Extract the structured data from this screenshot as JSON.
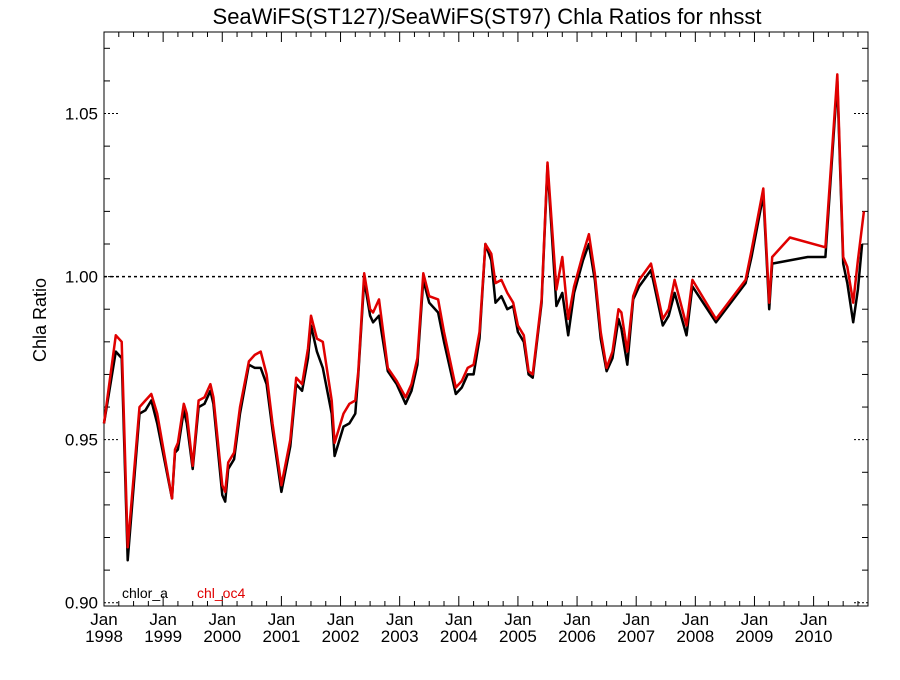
{
  "chart_data": {
    "type": "line",
    "title": "SeaWiFS(ST127)/SeaWiFS(ST97)  Chla Ratios for nhsst",
    "ylabel": "Chla Ratio",
    "xlabel": "",
    "ylim": [
      0.899,
      1.075
    ],
    "xlim": [
      1998.0,
      2010.92
    ],
    "yticks": [
      {
        "value": 0.9,
        "label": "0.90"
      },
      {
        "value": 0.95,
        "label": "0.95"
      },
      {
        "value": 1.0,
        "label": "1.00"
      },
      {
        "value": 1.05,
        "label": "1.05"
      }
    ],
    "xticks": [
      {
        "value": 1998,
        "month": "Jan",
        "year": "1998"
      },
      {
        "value": 1999,
        "month": "Jan",
        "year": "1999"
      },
      {
        "value": 2000,
        "month": "Jan",
        "year": "2000"
      },
      {
        "value": 2001,
        "month": "Jan",
        "year": "2001"
      },
      {
        "value": 2002,
        "month": "Jan",
        "year": "2002"
      },
      {
        "value": 2003,
        "month": "Jan",
        "year": "2003"
      },
      {
        "value": 2004,
        "month": "Jan",
        "year": "2004"
      },
      {
        "value": 2005,
        "month": "Jan",
        "year": "2005"
      },
      {
        "value": 2006,
        "month": "Jan",
        "year": "2006"
      },
      {
        "value": 2007,
        "month": "Jan",
        "year": "2007"
      },
      {
        "value": 2008,
        "month": "Jan",
        "year": "2008"
      },
      {
        "value": 2009,
        "month": "Jan",
        "year": "2009"
      },
      {
        "value": 2010,
        "month": "Jan",
        "year": "2010"
      }
    ],
    "reference_line": 1.0,
    "legend": [
      {
        "name": "chlor_a",
        "color": "#000000"
      },
      {
        "name": "chl_oc4",
        "color": "#e00000"
      }
    ],
    "legend_position": "bottom-left",
    "grid": false,
    "series": [
      {
        "name": "chlor_a",
        "color": "#000000",
        "points": [
          [
            1998.0,
            0.955
          ],
          [
            1998.2,
            0.977
          ],
          [
            1998.3,
            0.975
          ],
          [
            1998.4,
            0.913
          ],
          [
            1998.6,
            0.958
          ],
          [
            1998.7,
            0.959
          ],
          [
            1998.8,
            0.962
          ],
          [
            1998.9,
            0.955
          ],
          [
            1999.15,
            0.932
          ],
          [
            1999.2,
            0.946
          ],
          [
            1999.25,
            0.947
          ],
          [
            1999.35,
            0.959
          ],
          [
            1999.4,
            0.955
          ],
          [
            1999.5,
            0.941
          ],
          [
            1999.6,
            0.96
          ],
          [
            1999.7,
            0.961
          ],
          [
            1999.8,
            0.965
          ],
          [
            1999.85,
            0.961
          ],
          [
            2000.0,
            0.933
          ],
          [
            2000.05,
            0.931
          ],
          [
            2000.1,
            0.941
          ],
          [
            2000.2,
            0.944
          ],
          [
            2000.3,
            0.958
          ],
          [
            2000.45,
            0.973
          ],
          [
            2000.55,
            0.972
          ],
          [
            2000.65,
            0.972
          ],
          [
            2000.75,
            0.967
          ],
          [
            2000.85,
            0.953
          ],
          [
            2001.0,
            0.934
          ],
          [
            2001.15,
            0.948
          ],
          [
            2001.25,
            0.967
          ],
          [
            2001.35,
            0.965
          ],
          [
            2001.45,
            0.975
          ],
          [
            2001.5,
            0.985
          ],
          [
            2001.6,
            0.977
          ],
          [
            2001.7,
            0.972
          ],
          [
            2001.85,
            0.958
          ],
          [
            2001.9,
            0.945
          ],
          [
            2002.05,
            0.954
          ],
          [
            2002.15,
            0.955
          ],
          [
            2002.25,
            0.958
          ],
          [
            2002.3,
            0.97
          ],
          [
            2002.4,
            0.999
          ],
          [
            2002.5,
            0.988
          ],
          [
            2002.55,
            0.986
          ],
          [
            2002.65,
            0.988
          ],
          [
            2002.8,
            0.971
          ],
          [
            2002.95,
            0.967
          ],
          [
            2003.1,
            0.961
          ],
          [
            2003.2,
            0.965
          ],
          [
            2003.3,
            0.973
          ],
          [
            2003.4,
            0.999
          ],
          [
            2003.5,
            0.992
          ],
          [
            2003.65,
            0.989
          ],
          [
            2003.75,
            0.98
          ],
          [
            2003.95,
            0.964
          ],
          [
            2004.05,
            0.966
          ],
          [
            2004.15,
            0.97
          ],
          [
            2004.25,
            0.97
          ],
          [
            2004.35,
            0.981
          ],
          [
            2004.45,
            1.01
          ],
          [
            2004.55,
            1.005
          ],
          [
            2004.62,
            0.992
          ],
          [
            2004.72,
            0.994
          ],
          [
            2004.82,
            0.99
          ],
          [
            2004.92,
            0.991
          ],
          [
            2005.0,
            0.983
          ],
          [
            2005.1,
            0.98
          ],
          [
            2005.18,
            0.97
          ],
          [
            2005.25,
            0.969
          ],
          [
            2005.4,
            0.992
          ],
          [
            2005.5,
            1.034
          ],
          [
            2005.65,
            0.991
          ],
          [
            2005.75,
            0.995
          ],
          [
            2005.85,
            0.982
          ],
          [
            2005.95,
            0.995
          ],
          [
            2006.1,
            1.005
          ],
          [
            2006.2,
            1.01
          ],
          [
            2006.3,
            0.999
          ],
          [
            2006.4,
            0.981
          ],
          [
            2006.5,
            0.971
          ],
          [
            2006.6,
            0.975
          ],
          [
            2006.7,
            0.987
          ],
          [
            2006.75,
            0.984
          ],
          [
            2006.85,
            0.973
          ],
          [
            2006.95,
            0.993
          ],
          [
            2007.05,
            0.997
          ],
          [
            2007.25,
            1.002
          ],
          [
            2007.45,
            0.985
          ],
          [
            2007.55,
            0.988
          ],
          [
            2007.65,
            0.995
          ],
          [
            2007.85,
            0.982
          ],
          [
            2007.95,
            0.997
          ],
          [
            2008.35,
            0.986
          ],
          [
            2008.85,
            0.998
          ],
          [
            2008.95,
            1.006
          ],
          [
            2009.15,
            1.025
          ],
          [
            2009.25,
            0.99
          ],
          [
            2009.3,
            1.004
          ],
          [
            2009.9,
            1.006
          ],
          [
            2010.2,
            1.006
          ],
          [
            2010.4,
            1.06
          ],
          [
            2010.5,
            1.004
          ],
          [
            2010.57,
            0.998
          ],
          [
            2010.67,
            0.986
          ],
          [
            2010.75,
            0.996
          ],
          [
            2010.82,
            1.01
          ]
        ]
      },
      {
        "name": "chl_oc4",
        "color": "#e00000",
        "points": [
          [
            1998.0,
            0.955
          ],
          [
            1998.2,
            0.982
          ],
          [
            1998.3,
            0.98
          ],
          [
            1998.4,
            0.917
          ],
          [
            1998.6,
            0.96
          ],
          [
            1998.7,
            0.962
          ],
          [
            1998.8,
            0.964
          ],
          [
            1998.9,
            0.958
          ],
          [
            1999.15,
            0.932
          ],
          [
            1999.2,
            0.947
          ],
          [
            1999.25,
            0.949
          ],
          [
            1999.35,
            0.961
          ],
          [
            1999.4,
            0.958
          ],
          [
            1999.5,
            0.942
          ],
          [
            1999.6,
            0.962
          ],
          [
            1999.7,
            0.963
          ],
          [
            1999.8,
            0.967
          ],
          [
            1999.85,
            0.963
          ],
          [
            2000.0,
            0.936
          ],
          [
            2000.05,
            0.934
          ],
          [
            2000.1,
            0.943
          ],
          [
            2000.2,
            0.946
          ],
          [
            2000.3,
            0.96
          ],
          [
            2000.45,
            0.974
          ],
          [
            2000.55,
            0.976
          ],
          [
            2000.65,
            0.977
          ],
          [
            2000.75,
            0.97
          ],
          [
            2000.85,
            0.955
          ],
          [
            2001.0,
            0.936
          ],
          [
            2001.15,
            0.95
          ],
          [
            2001.25,
            0.969
          ],
          [
            2001.35,
            0.967
          ],
          [
            2001.45,
            0.978
          ],
          [
            2001.5,
            0.988
          ],
          [
            2001.6,
            0.981
          ],
          [
            2001.7,
            0.98
          ],
          [
            2001.85,
            0.962
          ],
          [
            2001.9,
            0.949
          ],
          [
            2002.05,
            0.958
          ],
          [
            2002.15,
            0.961
          ],
          [
            2002.25,
            0.962
          ],
          [
            2002.3,
            0.971
          ],
          [
            2002.4,
            1.001
          ],
          [
            2002.5,
            0.99
          ],
          [
            2002.55,
            0.989
          ],
          [
            2002.65,
            0.993
          ],
          [
            2002.8,
            0.972
          ],
          [
            2002.95,
            0.968
          ],
          [
            2003.1,
            0.963
          ],
          [
            2003.2,
            0.967
          ],
          [
            2003.3,
            0.975
          ],
          [
            2003.4,
            1.001
          ],
          [
            2003.5,
            0.994
          ],
          [
            2003.65,
            0.993
          ],
          [
            2003.75,
            0.983
          ],
          [
            2003.95,
            0.966
          ],
          [
            2004.05,
            0.968
          ],
          [
            2004.15,
            0.972
          ],
          [
            2004.25,
            0.973
          ],
          [
            2004.35,
            0.983
          ],
          [
            2004.45,
            1.01
          ],
          [
            2004.55,
            1.007
          ],
          [
            2004.62,
            0.998
          ],
          [
            2004.72,
            0.999
          ],
          [
            2004.82,
            0.995
          ],
          [
            2004.92,
            0.992
          ],
          [
            2005.0,
            0.985
          ],
          [
            2005.1,
            0.982
          ],
          [
            2005.18,
            0.971
          ],
          [
            2005.25,
            0.97
          ],
          [
            2005.4,
            0.993
          ],
          [
            2005.5,
            1.035
          ],
          [
            2005.65,
            0.996
          ],
          [
            2005.75,
            1.006
          ],
          [
            2005.85,
            0.987
          ],
          [
            2005.95,
            0.997
          ],
          [
            2006.1,
            1.007
          ],
          [
            2006.2,
            1.013
          ],
          [
            2006.3,
            1.001
          ],
          [
            2006.4,
            0.983
          ],
          [
            2006.5,
            0.972
          ],
          [
            2006.6,
            0.977
          ],
          [
            2006.7,
            0.99
          ],
          [
            2006.75,
            0.989
          ],
          [
            2006.85,
            0.977
          ],
          [
            2006.95,
            0.994
          ],
          [
            2007.05,
            0.999
          ],
          [
            2007.25,
            1.004
          ],
          [
            2007.45,
            0.987
          ],
          [
            2007.55,
            0.99
          ],
          [
            2007.65,
            0.999
          ],
          [
            2007.85,
            0.985
          ],
          [
            2007.95,
            0.999
          ],
          [
            2008.35,
            0.987
          ],
          [
            2008.85,
            0.999
          ],
          [
            2008.95,
            1.008
          ],
          [
            2009.15,
            1.027
          ],
          [
            2009.25,
            0.992
          ],
          [
            2009.3,
            1.006
          ],
          [
            2009.6,
            1.012
          ],
          [
            2010.2,
            1.009
          ],
          [
            2010.4,
            1.062
          ],
          [
            2010.5,
            1.006
          ],
          [
            2010.57,
            1.003
          ],
          [
            2010.67,
            0.992
          ],
          [
            2010.75,
            1.005
          ],
          [
            2010.85,
            1.02
          ]
        ]
      }
    ]
  }
}
